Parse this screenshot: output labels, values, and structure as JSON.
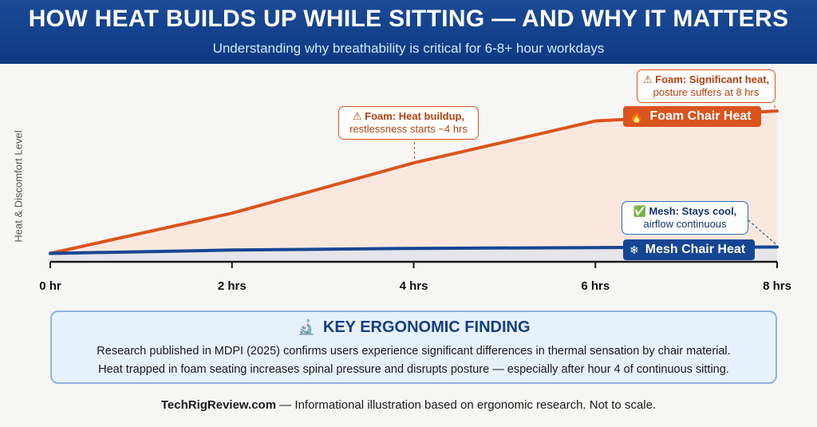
{
  "header": {
    "title": "HOW HEAT BUILDS UP WHILE SITTING — AND WHY IT MATTERS",
    "subtitle": "Understanding why breathability is critical for 6-8+ hour workdays"
  },
  "chart_data": {
    "type": "area",
    "ylabel": "Heat & Discomfort Level",
    "xlabel": "",
    "x": [
      0,
      2,
      4,
      6,
      8
    ],
    "xtick_labels": [
      "0 hr",
      "2 hrs",
      "4 hrs",
      "6 hrs",
      "8 hrs"
    ],
    "xlim": [
      0,
      8
    ],
    "ylim": [
      0,
      100
    ],
    "grid": false,
    "series": [
      {
        "name": "Foam Chair Heat",
        "values": [
          5,
          29,
          59,
          84,
          90
        ],
        "color": "#d9541e",
        "icon": "flame-icon"
      },
      {
        "name": "Mesh Chair Heat",
        "values": [
          5,
          7,
          8,
          8.5,
          8.8
        ],
        "color": "#164693",
        "icon": "snowflake-icon"
      }
    ],
    "annotations": [
      {
        "series": "Foam Chair Heat",
        "x": 4,
        "line1": "⚠ Foam: Heat buildup,",
        "line2": "restlessness starts ~4 hrs"
      },
      {
        "series": "Foam Chair Heat",
        "x": 8,
        "line1": "⚠ Foam: Significant heat,",
        "line2": "posture suffers at 8 hrs"
      },
      {
        "series": "Mesh Chair Heat",
        "x": 8,
        "line1": "✅ Mesh: Stays cool,",
        "line2": "airflow continuous"
      }
    ]
  },
  "finding": {
    "icon": "microscope-icon",
    "icon_glyph": "🔬",
    "heading": "KEY ERGONOMIC FINDING",
    "line1": "Research published in MDPI (2025) confirms users experience significant differences in thermal sensation by chair material.",
    "line2": "Heat trapped in foam seating increases spinal pressure and disrupts posture — especially after hour 4 of continuous sitting."
  },
  "footer": {
    "site": "TechRigReview.com",
    "note": " — Informational illustration based on ergonomic research. Not to scale."
  },
  "labels": {
    "foam_glyph": "🔥",
    "mesh_glyph": "❄"
  }
}
